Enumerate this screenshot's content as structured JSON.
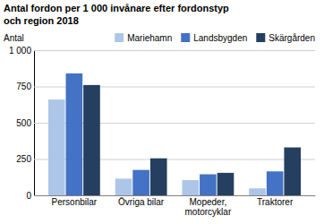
{
  "chart_data": {
    "type": "bar",
    "title": "Antal fordon per 1 000 invånare efter fordonstyp\noch region 2018",
    "ylabel": "Antal",
    "categories": [
      "Personbilar",
      "Övriga bilar",
      "Mopeder,\nmotorcyklar",
      "Traktorer"
    ],
    "series": [
      {
        "name": "Mariehamn",
        "color": "#adc6e8",
        "values": [
          660,
          115,
          105,
          48
        ]
      },
      {
        "name": "Landsbygden",
        "color": "#4472c4",
        "values": [
          840,
          175,
          145,
          165
        ]
      },
      {
        "name": "Skärgården",
        "color": "#243f60",
        "values": [
          760,
          255,
          155,
          330
        ]
      }
    ],
    "ylim": [
      0,
      1000
    ],
    "yticks": [
      0,
      250,
      500,
      750,
      {
        "value": 1000,
        "label": "1 000"
      }
    ],
    "grid": true,
    "legend": "upper right"
  }
}
